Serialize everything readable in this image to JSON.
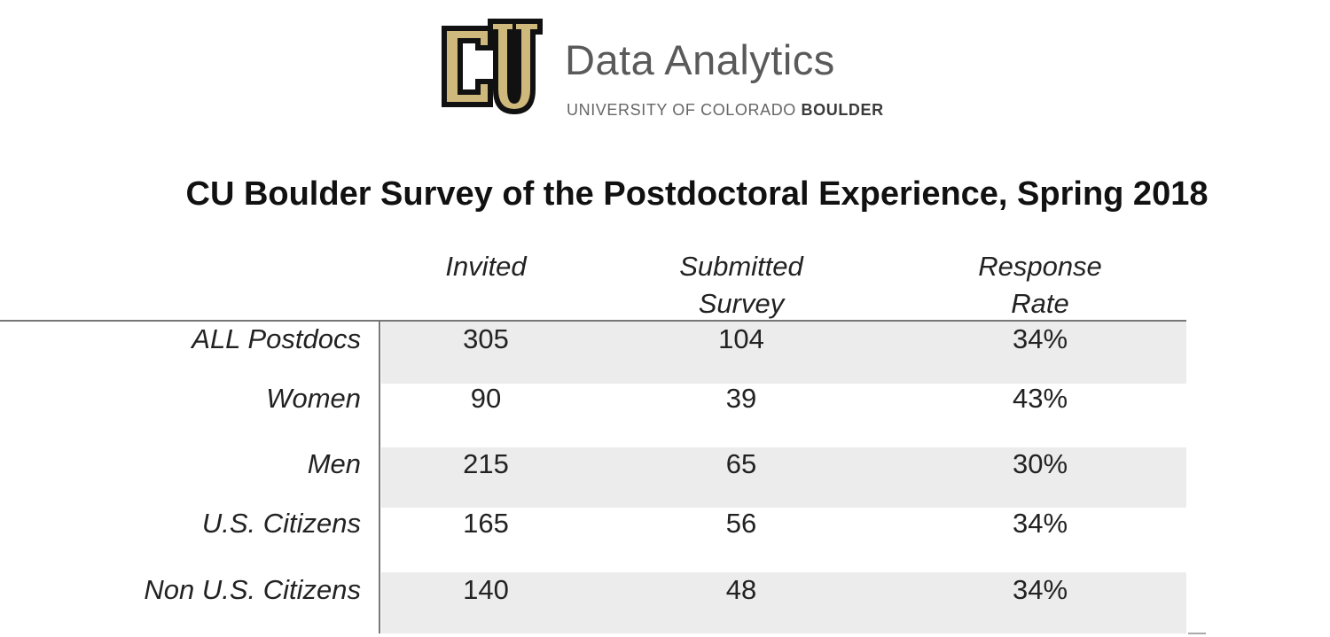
{
  "brand": {
    "logo_text": "CU",
    "title": "Data Analytics",
    "subtitle_regular": "UNIVERSITY OF COLORADO ",
    "subtitle_bold": "BOULDER",
    "colors": {
      "gold": "#cfb87c",
      "black": "#111111"
    }
  },
  "title": "CU Boulder Survey of the Postdoctoral Experience, Spring 2018",
  "table": {
    "columns": [
      {
        "line1": "Invited",
        "line2": ""
      },
      {
        "line1": "Submitted",
        "line2": "Survey"
      },
      {
        "line1": "Response",
        "line2": "Rate"
      }
    ],
    "rows": [
      {
        "label": "ALL Postdocs",
        "invited": "305",
        "submitted": "104",
        "rate": "34%"
      },
      {
        "label": "Women",
        "invited": "90",
        "submitted": "39",
        "rate": "43%"
      },
      {
        "label": "Men",
        "invited": "215",
        "submitted": "65",
        "rate": "30%"
      },
      {
        "label": "U.S. Citizens",
        "invited": "165",
        "submitted": "56",
        "rate": "34%"
      },
      {
        "label": "Non U.S. Citizens",
        "invited": "140",
        "submitted": "48",
        "rate": "34%"
      }
    ]
  }
}
